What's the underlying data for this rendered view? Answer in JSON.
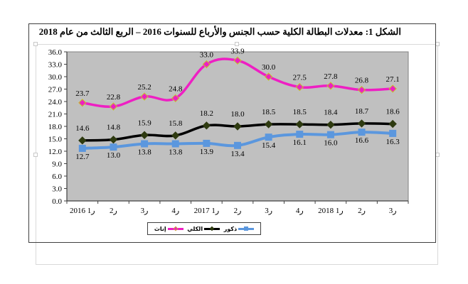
{
  "title": "الشكل 1:  معدلات البطالة الكلية حسب الجنس والأرباع للسنوات 2016 – الربع الثالث من عام 2018",
  "legend": {
    "female": "إناث",
    "total": "الكلي",
    "male": "ذكور"
  },
  "colors": {
    "female": "#ee1fc3",
    "female_marker_border": "#c6c22a",
    "total": "#000000",
    "total_marker": "#2e3a10",
    "male": "#5b97de",
    "plot_bg": "#c0c0c0"
  },
  "chart_data": {
    "type": "line",
    "title": "الشكل 1:  معدلات البطالة الكلية حسب الجنس والأرباع للسنوات 2016 – الربع الثالث من عام 2018",
    "xlabel": "",
    "ylabel": "",
    "ylim": [
      0,
      36
    ],
    "yticks": [
      "0.0",
      "3.0",
      "6.0",
      "9.0",
      "12.0",
      "15.0",
      "18.0",
      "21.0",
      "24.0",
      "27.0",
      "30.0",
      "33.0",
      "36.0"
    ],
    "categories": [
      "ر1 2016",
      "ر2",
      "ر3",
      "ر4",
      "ر1 2017",
      "ر2",
      "ر3",
      "ر4",
      "ر1 2018",
      "ر2",
      "ر3"
    ],
    "grid": false,
    "legend_position": "bottom",
    "series": [
      {
        "name": "إناث",
        "color": "#ee1fc3",
        "marker": "diamond",
        "values": [
          23.7,
          22.8,
          25.2,
          24.8,
          33.0,
          33.9,
          30.0,
          27.5,
          27.8,
          26.8,
          27.1
        ]
      },
      {
        "name": "الكلي",
        "color": "#000000",
        "marker": "diamond",
        "values": [
          14.6,
          14.8,
          15.9,
          15.8,
          18.2,
          18.0,
          18.5,
          18.5,
          18.4,
          18.7,
          18.6
        ]
      },
      {
        "name": "ذكور",
        "color": "#5b97de",
        "marker": "square",
        "values": [
          12.7,
          13.0,
          13.8,
          13.8,
          13.9,
          13.4,
          15.4,
          16.1,
          16.0,
          16.6,
          16.3
        ]
      }
    ]
  }
}
